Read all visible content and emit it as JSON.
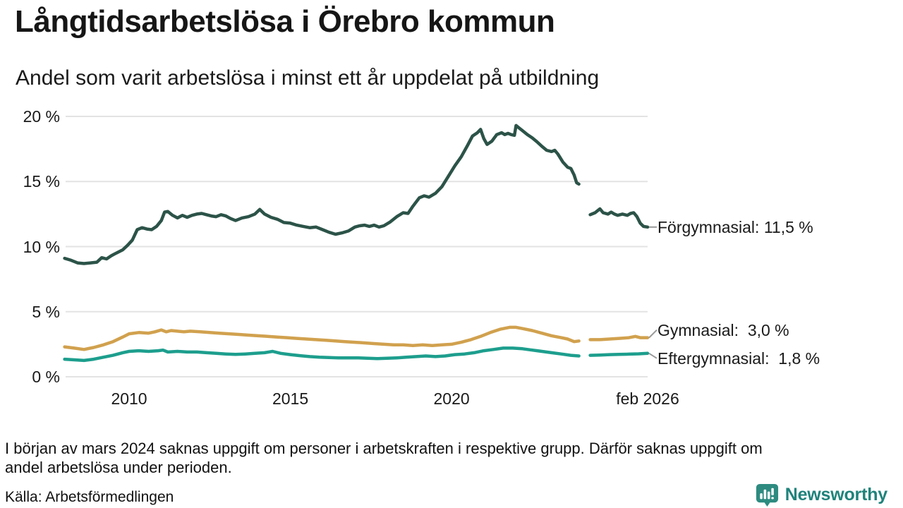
{
  "title": "Långtidsarbetslösa i Örebro kommun",
  "subtitle": "Andel som varit arbetslösa i minst ett år uppdelat på utbildning",
  "footnote": {
    "lines": [
      "I början av mars 2024 saknas uppgift om personer i arbetskraften i respektive grupp. Därför saknas uppgift om",
      "andel arbetslösa under perioden."
    ]
  },
  "source": "Källa: Arbetsförmedlingen",
  "logo": {
    "name": "Newsworthy"
  },
  "colors": {
    "text": "#1a1a1a",
    "grid": "#e3e3e3",
    "connector": "#999999",
    "dark_green": "#2c5348",
    "gold": "#d1a14e",
    "teal": "#1d9e8d",
    "logo_teal": "#2e8b80",
    "logo_text_teal": "#1f837b"
  },
  "chart_data": {
    "type": "line",
    "x_range": [
      2008.03,
      2026.08
    ],
    "x_axis": {
      "ticks": [
        {
          "label": "2010",
          "year": 2010
        },
        {
          "label": "2015",
          "year": 2015
        },
        {
          "label": "2020",
          "year": 2020
        },
        {
          "label": "feb 2026",
          "year": 2026.08
        }
      ]
    },
    "y_axis": {
      "range": [
        0,
        20
      ],
      "ticks": [
        {
          "label": "0 %",
          "value": 0
        },
        {
          "label": "5 %",
          "value": 5
        },
        {
          "label": "10 %",
          "value": 10
        },
        {
          "label": "15 %",
          "value": 15
        },
        {
          "label": "20 %",
          "value": 20
        }
      ]
    },
    "grid": true,
    "legend_position": "right-of-line-ends",
    "series": [
      {
        "id": "forgymnasial",
        "name": "Förgymnasial",
        "label": "Förgymnasial: 11,5 %",
        "end_value": 11.5,
        "color": "#2c5348",
        "label_dy": 0,
        "segments": [
          [
            [
              2008.0,
              9.1
            ],
            [
              2008.2,
              8.95
            ],
            [
              2008.4,
              8.75
            ],
            [
              2008.6,
              8.7
            ],
            [
              2008.8,
              8.75
            ],
            [
              2009.0,
              8.8
            ],
            [
              2009.15,
              9.15
            ],
            [
              2009.3,
              9.05
            ],
            [
              2009.45,
              9.3
            ],
            [
              2009.6,
              9.5
            ],
            [
              2009.8,
              9.75
            ],
            [
              2009.95,
              10.1
            ],
            [
              2010.1,
              10.5
            ],
            [
              2010.25,
              11.3
            ],
            [
              2010.4,
              11.45
            ],
            [
              2010.55,
              11.35
            ],
            [
              2010.7,
              11.3
            ],
            [
              2010.85,
              11.55
            ],
            [
              2011.0,
              12.0
            ],
            [
              2011.1,
              12.65
            ],
            [
              2011.2,
              12.7
            ],
            [
              2011.35,
              12.4
            ],
            [
              2011.5,
              12.2
            ],
            [
              2011.65,
              12.4
            ],
            [
              2011.8,
              12.25
            ],
            [
              2011.95,
              12.4
            ],
            [
              2012.1,
              12.5
            ],
            [
              2012.25,
              12.55
            ],
            [
              2012.4,
              12.45
            ],
            [
              2012.55,
              12.35
            ],
            [
              2012.7,
              12.3
            ],
            [
              2012.85,
              12.45
            ],
            [
              2013.0,
              12.35
            ],
            [
              2013.15,
              12.15
            ],
            [
              2013.3,
              12.0
            ],
            [
              2013.5,
              12.2
            ],
            [
              2013.7,
              12.3
            ],
            [
              2013.9,
              12.5
            ],
            [
              2014.05,
              12.85
            ],
            [
              2014.2,
              12.5
            ],
            [
              2014.4,
              12.25
            ],
            [
              2014.6,
              12.1
            ],
            [
              2014.8,
              11.85
            ],
            [
              2015.0,
              11.8
            ],
            [
              2015.2,
              11.65
            ],
            [
              2015.4,
              11.55
            ],
            [
              2015.6,
              11.45
            ],
            [
              2015.8,
              11.5
            ],
            [
              2016.0,
              11.3
            ],
            [
              2016.2,
              11.1
            ],
            [
              2016.4,
              10.95
            ],
            [
              2016.6,
              11.05
            ],
            [
              2016.8,
              11.2
            ],
            [
              2017.0,
              11.5
            ],
            [
              2017.15,
              11.6
            ],
            [
              2017.3,
              11.65
            ],
            [
              2017.45,
              11.55
            ],
            [
              2017.6,
              11.65
            ],
            [
              2017.75,
              11.5
            ],
            [
              2017.9,
              11.6
            ],
            [
              2018.1,
              11.9
            ],
            [
              2018.3,
              12.3
            ],
            [
              2018.5,
              12.6
            ],
            [
              2018.65,
              12.55
            ],
            [
              2018.8,
              13.1
            ],
            [
              2019.0,
              13.75
            ],
            [
              2019.15,
              13.9
            ],
            [
              2019.3,
              13.8
            ],
            [
              2019.5,
              14.1
            ],
            [
              2019.7,
              14.6
            ],
            [
              2019.9,
              15.4
            ],
            [
              2020.1,
              16.2
            ],
            [
              2020.3,
              16.9
            ],
            [
              2020.5,
              17.8
            ],
            [
              2020.65,
              18.5
            ],
            [
              2020.8,
              18.75
            ],
            [
              2020.9,
              19.0
            ],
            [
              2021.0,
              18.3
            ],
            [
              2021.1,
              17.85
            ],
            [
              2021.25,
              18.1
            ],
            [
              2021.4,
              18.6
            ],
            [
              2021.55,
              18.75
            ],
            [
              2021.65,
              18.6
            ],
            [
              2021.75,
              18.7
            ],
            [
              2021.85,
              18.6
            ],
            [
              2021.95,
              18.55
            ],
            [
              2022.0,
              19.3
            ],
            [
              2022.1,
              19.1
            ],
            [
              2022.2,
              18.9
            ],
            [
              2022.35,
              18.6
            ],
            [
              2022.5,
              18.35
            ],
            [
              2022.65,
              18.05
            ],
            [
              2022.8,
              17.7
            ],
            [
              2022.95,
              17.4
            ],
            [
              2023.1,
              17.3
            ],
            [
              2023.2,
              17.4
            ],
            [
              2023.3,
              17.1
            ],
            [
              2023.45,
              16.5
            ],
            [
              2023.6,
              16.1
            ],
            [
              2023.7,
              16.0
            ],
            [
              2023.8,
              15.5
            ],
            [
              2023.88,
              14.9
            ],
            [
              2023.95,
              14.8
            ]
          ],
          [
            [
              2024.3,
              12.45
            ],
            [
              2024.45,
              12.6
            ],
            [
              2024.6,
              12.9
            ],
            [
              2024.7,
              12.6
            ],
            [
              2024.85,
              12.5
            ],
            [
              2024.95,
              12.65
            ],
            [
              2025.05,
              12.5
            ],
            [
              2025.15,
              12.4
            ],
            [
              2025.3,
              12.5
            ],
            [
              2025.45,
              12.4
            ],
            [
              2025.55,
              12.55
            ],
            [
              2025.65,
              12.6
            ],
            [
              2025.75,
              12.3
            ],
            [
              2025.85,
              11.8
            ],
            [
              2025.95,
              11.55
            ],
            [
              2026.08,
              11.5
            ]
          ]
        ]
      },
      {
        "id": "gymnasial",
        "name": "Gymnasial",
        "label": "Gymnasial:  3,0 %",
        "end_value": 3.0,
        "color": "#d1a14e",
        "label_dy": -11,
        "segments": [
          [
            [
              2008.0,
              2.3
            ],
            [
              2008.3,
              2.2
            ],
            [
              2008.6,
              2.1
            ],
            [
              2008.9,
              2.25
            ],
            [
              2009.2,
              2.45
            ],
            [
              2009.5,
              2.7
            ],
            [
              2009.8,
              3.05
            ],
            [
              2010.0,
              3.3
            ],
            [
              2010.3,
              3.4
            ],
            [
              2010.6,
              3.35
            ],
            [
              2010.8,
              3.45
            ],
            [
              2011.0,
              3.6
            ],
            [
              2011.15,
              3.45
            ],
            [
              2011.3,
              3.55
            ],
            [
              2011.5,
              3.5
            ],
            [
              2011.7,
              3.45
            ],
            [
              2011.9,
              3.5
            ],
            [
              2012.2,
              3.45
            ],
            [
              2012.5,
              3.4
            ],
            [
              2012.8,
              3.35
            ],
            [
              2013.1,
              3.3
            ],
            [
              2013.4,
              3.25
            ],
            [
              2013.7,
              3.2
            ],
            [
              2014.0,
              3.15
            ],
            [
              2014.3,
              3.1
            ],
            [
              2014.6,
              3.05
            ],
            [
              2014.9,
              3.0
            ],
            [
              2015.2,
              2.95
            ],
            [
              2015.5,
              2.9
            ],
            [
              2015.8,
              2.85
            ],
            [
              2016.1,
              2.8
            ],
            [
              2016.4,
              2.75
            ],
            [
              2016.7,
              2.7
            ],
            [
              2017.0,
              2.65
            ],
            [
              2017.3,
              2.6
            ],
            [
              2017.6,
              2.55
            ],
            [
              2017.9,
              2.5
            ],
            [
              2018.2,
              2.45
            ],
            [
              2018.5,
              2.45
            ],
            [
              2018.8,
              2.4
            ],
            [
              2019.1,
              2.45
            ],
            [
              2019.4,
              2.4
            ],
            [
              2019.7,
              2.45
            ],
            [
              2020.0,
              2.5
            ],
            [
              2020.3,
              2.65
            ],
            [
              2020.6,
              2.85
            ],
            [
              2020.9,
              3.1
            ],
            [
              2021.2,
              3.4
            ],
            [
              2021.5,
              3.65
            ],
            [
              2021.8,
              3.8
            ],
            [
              2022.0,
              3.8
            ],
            [
              2022.2,
              3.7
            ],
            [
              2022.5,
              3.55
            ],
            [
              2022.8,
              3.35
            ],
            [
              2023.1,
              3.15
            ],
            [
              2023.4,
              3.0
            ],
            [
              2023.6,
              2.9
            ],
            [
              2023.8,
              2.7
            ],
            [
              2023.95,
              2.75
            ]
          ],
          [
            [
              2024.3,
              2.85
            ],
            [
              2024.6,
              2.85
            ],
            [
              2024.9,
              2.9
            ],
            [
              2025.2,
              2.95
            ],
            [
              2025.5,
              3.0
            ],
            [
              2025.7,
              3.1
            ],
            [
              2025.85,
              3.0
            ],
            [
              2026.08,
              3.0
            ]
          ]
        ]
      },
      {
        "id": "eftergymnasial",
        "name": "Eftergymnasial",
        "label": "Eftergymnasial:  1,8 %",
        "end_value": 1.8,
        "color": "#1d9e8d",
        "label_dy": 7,
        "segments": [
          [
            [
              2008.0,
              1.35
            ],
            [
              2008.3,
              1.3
            ],
            [
              2008.6,
              1.25
            ],
            [
              2008.9,
              1.35
            ],
            [
              2009.2,
              1.5
            ],
            [
              2009.5,
              1.65
            ],
            [
              2009.8,
              1.85
            ],
            [
              2010.0,
              1.95
            ],
            [
              2010.3,
              2.0
            ],
            [
              2010.6,
              1.95
            ],
            [
              2010.9,
              2.0
            ],
            [
              2011.05,
              2.05
            ],
            [
              2011.2,
              1.9
            ],
            [
              2011.5,
              1.95
            ],
            [
              2011.8,
              1.9
            ],
            [
              2012.1,
              1.9
            ],
            [
              2012.4,
              1.85
            ],
            [
              2012.7,
              1.8
            ],
            [
              2013.0,
              1.75
            ],
            [
              2013.3,
              1.72
            ],
            [
              2013.6,
              1.75
            ],
            [
              2013.9,
              1.8
            ],
            [
              2014.2,
              1.85
            ],
            [
              2014.45,
              1.95
            ],
            [
              2014.7,
              1.8
            ],
            [
              2015.0,
              1.7
            ],
            [
              2015.3,
              1.62
            ],
            [
              2015.6,
              1.55
            ],
            [
              2015.9,
              1.5
            ],
            [
              2016.2,
              1.48
            ],
            [
              2016.5,
              1.45
            ],
            [
              2016.8,
              1.45
            ],
            [
              2017.1,
              1.45
            ],
            [
              2017.4,
              1.42
            ],
            [
              2017.7,
              1.4
            ],
            [
              2018.0,
              1.42
            ],
            [
              2018.3,
              1.45
            ],
            [
              2018.6,
              1.5
            ],
            [
              2018.9,
              1.55
            ],
            [
              2019.2,
              1.6
            ],
            [
              2019.5,
              1.55
            ],
            [
              2019.8,
              1.6
            ],
            [
              2020.1,
              1.7
            ],
            [
              2020.4,
              1.75
            ],
            [
              2020.7,
              1.85
            ],
            [
              2021.0,
              2.0
            ],
            [
              2021.3,
              2.1
            ],
            [
              2021.6,
              2.2
            ],
            [
              2021.9,
              2.2
            ],
            [
              2022.2,
              2.15
            ],
            [
              2022.5,
              2.05
            ],
            [
              2022.8,
              1.95
            ],
            [
              2023.1,
              1.85
            ],
            [
              2023.4,
              1.75
            ],
            [
              2023.7,
              1.65
            ],
            [
              2023.95,
              1.6
            ]
          ],
          [
            [
              2024.3,
              1.65
            ],
            [
              2024.6,
              1.67
            ],
            [
              2024.9,
              1.7
            ],
            [
              2025.2,
              1.72
            ],
            [
              2025.5,
              1.74
            ],
            [
              2025.8,
              1.76
            ],
            [
              2026.08,
              1.8
            ]
          ]
        ]
      }
    ]
  }
}
